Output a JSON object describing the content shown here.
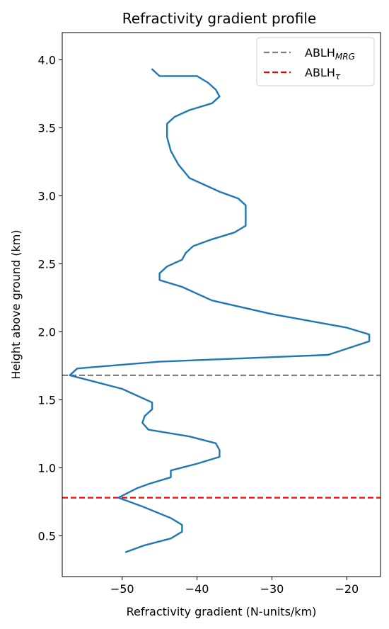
{
  "chart_data": {
    "type": "line",
    "title": "Refractivity gradient profile",
    "xlabel": "Refractivity gradient (N-units/km)",
    "ylabel": "Height above ground (km)",
    "xlim": [
      -58,
      -15.5
    ],
    "ylim": [
      0.2,
      4.2
    ],
    "xticks": [
      -50,
      -40,
      -30,
      -20
    ],
    "xtick_labels": [
      "−50",
      "−40",
      "−30",
      "−20"
    ],
    "yticks": [
      0.5,
      1.0,
      1.5,
      2.0,
      2.5,
      3.0,
      3.5,
      4.0
    ],
    "ytick_labels": [
      "0.5",
      "1.0",
      "1.5",
      "2.0",
      "2.5",
      "3.0",
      "3.5",
      "4.0"
    ],
    "grid": false,
    "legend": {
      "placement": "top-right",
      "entries": [
        {
          "main": "ABLH",
          "sub": "MRG",
          "color": "#808080",
          "style": "dashed"
        },
        {
          "main": "ABLH",
          "sub": "τ",
          "color": "#ff0000",
          "style": "dashed"
        }
      ]
    },
    "hlines": [
      {
        "y": 1.68,
        "color": "#808080",
        "style": "dashed"
      },
      {
        "y": 0.78,
        "color": "#ff0000",
        "style": "dashed"
      }
    ],
    "series": [
      {
        "color": "#1f77b4",
        "x": [
          -49.5,
          -47,
          -43.5,
          -42,
          -42,
          -43.5,
          -47.5,
          -50.5,
          -48,
          -46.5,
          -43.5,
          -43.5,
          -40,
          -37,
          -37,
          -37.5,
          -41,
          -46.5,
          -47.3,
          -47,
          -46,
          -46,
          -50,
          -57,
          -56,
          -45,
          -22.5,
          -17,
          -17,
          -20,
          -30,
          -38,
          -42,
          -45,
          -45,
          -44,
          -42,
          -41.5,
          -40.5,
          -38,
          -35,
          -33.5,
          -33.5,
          -34.5,
          -37,
          -39,
          -41,
          -42.5,
          -43.5,
          -44,
          -44,
          -43,
          -41,
          -38,
          -37,
          -37.5,
          -38.5,
          -40,
          -45,
          -46
        ],
        "y": [
          0.38,
          0.43,
          0.48,
          0.53,
          0.58,
          0.63,
          0.72,
          0.78,
          0.85,
          0.88,
          0.93,
          0.98,
          1.03,
          1.08,
          1.13,
          1.18,
          1.23,
          1.28,
          1.33,
          1.38,
          1.43,
          1.48,
          1.58,
          1.68,
          1.73,
          1.78,
          1.83,
          1.93,
          1.98,
          2.03,
          2.13,
          2.23,
          2.33,
          2.38,
          2.43,
          2.48,
          2.53,
          2.58,
          2.63,
          2.68,
          2.73,
          2.78,
          2.93,
          2.98,
          3.03,
          3.08,
          3.13,
          3.23,
          3.33,
          3.43,
          3.53,
          3.58,
          3.63,
          3.68,
          3.73,
          3.78,
          3.83,
          3.88,
          3.88,
          3.93
        ]
      }
    ]
  }
}
